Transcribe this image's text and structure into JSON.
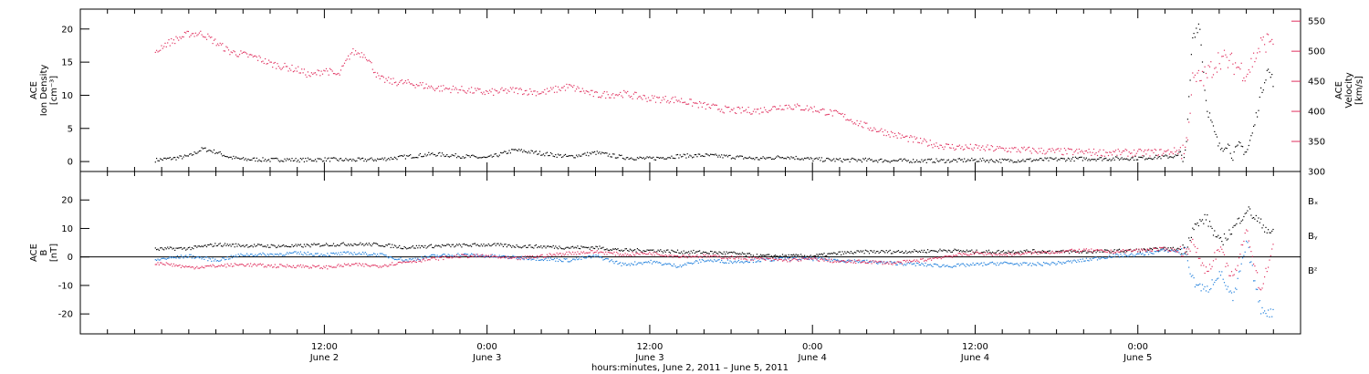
{
  "colors": {
    "black": "#000000",
    "red": "#e0315f",
    "blue": "#1f7fdc"
  },
  "chart_data": [
    {
      "type": "scatter",
      "ylabel_lines": [
        "ACE",
        "Ion Density",
        "[cm⁻³]"
      ],
      "ylabel_right_lines": [
        "ACE",
        "Velocity",
        "[km/s]"
      ],
      "ylim": [
        -1.5,
        23
      ],
      "yticks": [
        0,
        5,
        10,
        15,
        20
      ],
      "ylim_right": [
        300,
        570
      ],
      "yticks_right": [
        300,
        350,
        400,
        450,
        500,
        550
      ],
      "series": [
        {
          "axis": "left",
          "color": "#000000",
          "x": [
            -0.5,
            0,
            1,
            2,
            3,
            4,
            5,
            6,
            7,
            8,
            9,
            10,
            12,
            14,
            16,
            18,
            20,
            22,
            24,
            26,
            28,
            30,
            32,
            34,
            36,
            38,
            40,
            42,
            44,
            46,
            48,
            50,
            52,
            54,
            56,
            58,
            60,
            62,
            64,
            66,
            68,
            70,
            72,
            74,
            75.5,
            76,
            76.5,
            77,
            77.5,
            78,
            78.5,
            79,
            79.5,
            80,
            80.5,
            81,
            81.5,
            82
          ],
          "y": [
            0.3,
            0.4,
            0.6,
            0.9,
            2.0,
            1.5,
            0.7,
            0.4,
            0.4,
            0.3,
            0.4,
            0.3,
            0.4,
            0.3,
            0.4,
            0.8,
            1.2,
            0.9,
            0.6,
            1.8,
            1.3,
            0.8,
            1.4,
            0.7,
            0.5,
            0.9,
            1.0,
            0.8,
            0.5,
            0.8,
            0.4,
            0.3,
            0.3,
            0.2,
            0.2,
            0.2,
            0.3,
            0.2,
            0.3,
            0.4,
            0.5,
            0.5,
            0.6,
            0.8,
            1.0,
            19.0,
            21.0,
            9.0,
            5.0,
            2.0,
            3.0,
            1.0,
            2.5,
            1.5,
            5.0,
            10.0,
            14.0,
            12.0
          ]
        },
        {
          "axis": "right",
          "color": "#e0315f",
          "x": [
            -0.5,
            0,
            1,
            2,
            3,
            4,
            5,
            6,
            7,
            8,
            9,
            10,
            11,
            12,
            13,
            14,
            15,
            16,
            17,
            18,
            19,
            20,
            22,
            24,
            26,
            28,
            30,
            32,
            34,
            36,
            38,
            40,
            42,
            44,
            46,
            48,
            50,
            52,
            54,
            56,
            58,
            60,
            62,
            64,
            66,
            68,
            70,
            72,
            74,
            75.5,
            76,
            77,
            78,
            79,
            80,
            81,
            82
          ],
          "y": [
            495,
            510,
            520,
            530,
            530,
            515,
            500,
            495,
            490,
            480,
            475,
            470,
            460,
            470,
            460,
            500,
            495,
            455,
            450,
            448,
            445,
            440,
            437,
            432,
            436,
            432,
            442,
            428,
            430,
            422,
            420,
            410,
            402,
            402,
            410,
            405,
            395,
            375,
            362,
            350,
            342,
            340,
            338,
            336,
            334,
            333,
            332,
            332,
            333,
            337,
            450,
            460,
            490,
            480,
            465,
            510,
            525
          ]
        }
      ]
    },
    {
      "type": "scatter",
      "ylabel_lines": [
        "ACE",
        "B",
        "[nT]"
      ],
      "ylim": [
        -27,
        30
      ],
      "yticks": [
        -20,
        -10,
        0,
        10,
        20
      ],
      "series": [
        {
          "name": "Bₓ",
          "color": "#000000",
          "x": [
            -0.5,
            0,
            2,
            4,
            6,
            8,
            10,
            12,
            14,
            16,
            18,
            20,
            22,
            24,
            26,
            28,
            30,
            32,
            34,
            36,
            38,
            40,
            42,
            44,
            46,
            48,
            50,
            52,
            54,
            56,
            58,
            60,
            62,
            64,
            66,
            68,
            70,
            72,
            74,
            75.5,
            76,
            77,
            78,
            79,
            80,
            81,
            82
          ],
          "y": [
            2.8,
            3.0,
            3.2,
            4.5,
            4.2,
            4.0,
            4.0,
            4.5,
            4.7,
            4.5,
            3.5,
            4.0,
            4.2,
            4.5,
            4.0,
            3.8,
            3.5,
            3.5,
            2.5,
            2.5,
            2.0,
            1.8,
            1.5,
            0.5,
            0.5,
            0.5,
            1.5,
            2.0,
            2.0,
            2.2,
            2.5,
            2.0,
            2.0,
            2.2,
            2.0,
            2.0,
            2.2,
            2.5,
            3.0,
            3.0,
            10,
            14,
            5,
            10,
            17,
            12,
            8
          ]
        },
        {
          "name": "Bᵧ",
          "color": "#1f7fdc",
          "x": [
            -0.5,
            0,
            2,
            4,
            6,
            8,
            10,
            12,
            14,
            16,
            18,
            20,
            22,
            24,
            26,
            28,
            30,
            32,
            34,
            36,
            38,
            40,
            42,
            44,
            46,
            48,
            50,
            52,
            54,
            56,
            58,
            60,
            62,
            64,
            66,
            68,
            70,
            72,
            74,
            75.5,
            76,
            77,
            78,
            79,
            80,
            81,
            82
          ],
          "y": [
            -1.0,
            -0.5,
            0.5,
            -1.0,
            1.0,
            1.0,
            1.5,
            1.0,
            1.5,
            1.0,
            -1.0,
            0.5,
            1.0,
            0.5,
            0.0,
            -0.5,
            -1.0,
            0.5,
            -2.5,
            -1.5,
            -3.0,
            -1.0,
            -1.5,
            -1.0,
            -0.5,
            -0.5,
            -1.0,
            -1.5,
            -2.0,
            -2.5,
            -3.0,
            -2.5,
            -2.0,
            -2.5,
            -2.0,
            -1.0,
            0.5,
            1.0,
            2.5,
            2.0,
            -8,
            -12,
            -5,
            -15,
            5,
            -18,
            -20
          ]
        },
        {
          "name": "Bᶻ",
          "color": "#e0315f",
          "x": [
            -0.5,
            0,
            2,
            4,
            6,
            8,
            10,
            12,
            14,
            16,
            18,
            20,
            22,
            24,
            26,
            28,
            30,
            32,
            34,
            36,
            38,
            40,
            42,
            44,
            46,
            48,
            50,
            52,
            54,
            56,
            58,
            60,
            62,
            64,
            66,
            68,
            70,
            72,
            74,
            75.5,
            76,
            77,
            78,
            79,
            80,
            81,
            82
          ],
          "y": [
            -2.0,
            -2.0,
            -3.5,
            -3.0,
            -2.5,
            -3.0,
            -3.0,
            -3.5,
            -2.5,
            -3.0,
            -1.5,
            -0.5,
            0.5,
            0.5,
            -0.5,
            0.5,
            1.5,
            2.0,
            1.0,
            1.5,
            0.5,
            0.5,
            0.0,
            -0.5,
            -1.0,
            -0.5,
            -1.5,
            -1.5,
            -2.0,
            -1.0,
            0.5,
            1.5,
            1.0,
            1.5,
            2.0,
            2.5,
            2.0,
            2.5,
            3.0,
            2.0,
            5,
            -5,
            3,
            -8,
            10,
            -12,
            5
          ]
        }
      ]
    }
  ],
  "xaxis": {
    "xlim": [
      -6,
      84
    ],
    "xlabel": "hours:minutes, June  2, 2011 – June  5, 2011",
    "major_ticks": [
      {
        "x": 12,
        "time": "12:00",
        "date": "June 2"
      },
      {
        "x": 24,
        "time": "0:00",
        "date": "June 3"
      },
      {
        "x": 36,
        "time": "12:00",
        "date": "June 3"
      },
      {
        "x": 48,
        "time": "0:00",
        "date": "June 4"
      },
      {
        "x": 60,
        "time": "12:00",
        "date": "June 4"
      },
      {
        "x": 72,
        "time": "0:00",
        "date": "June 5"
      }
    ]
  },
  "legend": [
    "Bₓ",
    "Bᵧ",
    "Bᶻ"
  ]
}
